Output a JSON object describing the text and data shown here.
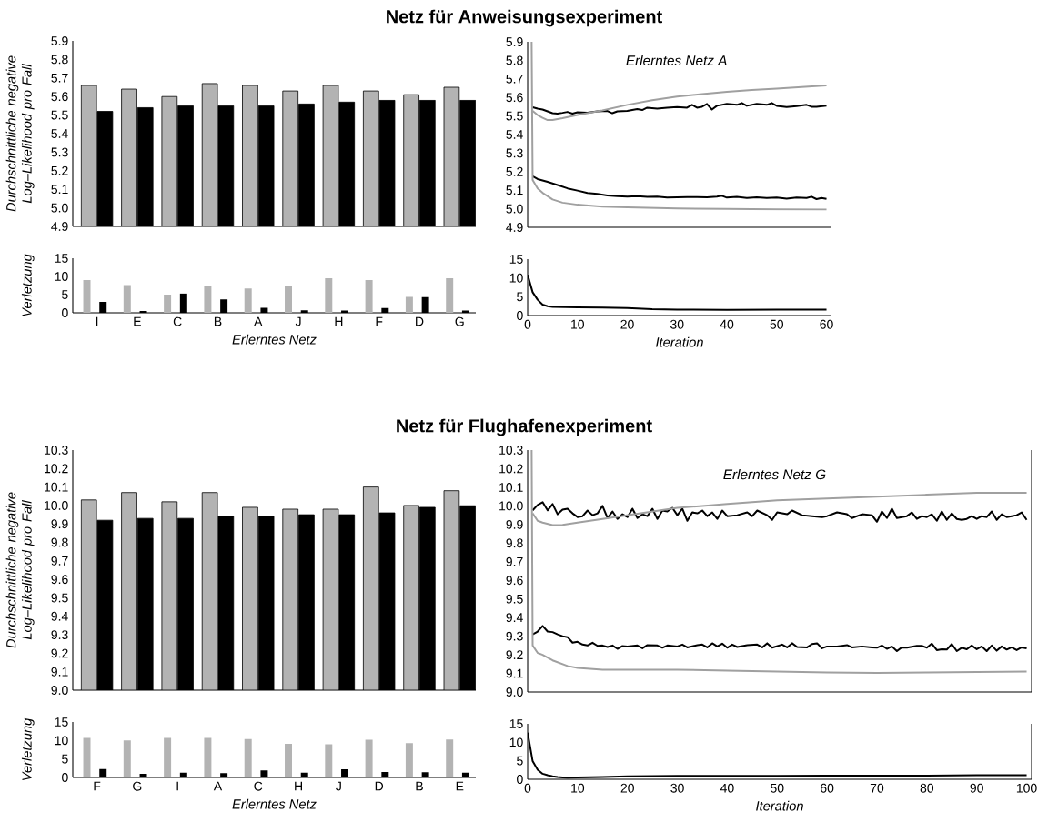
{
  "chart_data": [
    {
      "type": "bar",
      "title": "Netz für Anweisungsexperiment",
      "ylabel": "Durchschnittliche negative Log–Likelihood pro Fall",
      "categories": [
        null,
        null,
        null,
        null,
        null,
        null,
        null,
        null,
        null,
        null
      ],
      "series": [
        {
          "color": "#b3b3b3",
          "values": [
            5.66,
            5.64,
            5.6,
            5.67,
            5.66,
            5.63,
            5.66,
            5.63,
            5.61,
            5.65
          ]
        },
        {
          "color": "#000000",
          "values": [
            5.52,
            5.54,
            5.55,
            5.55,
            5.55,
            5.56,
            5.57,
            5.58,
            5.58,
            5.58
          ]
        }
      ],
      "ylim": [
        4.9,
        5.9
      ],
      "yticks": [
        4.9,
        {
          "value": 5.0,
          "label": "5.0"
        },
        5.1,
        5.2,
        5.3,
        5.4,
        5.5,
        5.6,
        5.7,
        5.8,
        5.9
      ]
    },
    {
      "type": "bar",
      "xlabel": "Erlerntes Netz",
      "ylabel": "Verletzung",
      "categories": [
        "I",
        "E",
        "C",
        "B",
        "A",
        "J",
        "H",
        "F",
        "D",
        "G"
      ],
      "series": [
        {
          "color": "#b3b3b3",
          "values": [
            9.0,
            7.6,
            5.0,
            7.3,
            6.7,
            7.5,
            9.5,
            9.0,
            4.4,
            9.5
          ]
        },
        {
          "color": "#000000",
          "values": [
            3.0,
            0.5,
            5.3,
            3.7,
            1.4,
            0.7,
            0.6,
            1.3,
            4.3,
            0.6
          ]
        }
      ],
      "ylim": [
        0,
        15
      ],
      "yticks": [
        0,
        5,
        10,
        15
      ]
    },
    {
      "type": "line",
      "annotations": [
        "Erlerntes Netz A"
      ],
      "xlim": [
        0,
        61
      ],
      "ylim": [
        4.9,
        5.9
      ],
      "yticks": [
        4.9,
        {
          "value": 5.0,
          "label": "5.0"
        },
        5.1,
        5.2,
        5.3,
        5.4,
        5.5,
        5.6,
        5.7,
        5.8,
        5.9
      ],
      "tick_labels": "y",
      "series": [
        {
          "color": "#000000",
          "x": [
            1,
            2,
            3,
            4,
            5,
            6,
            7,
            8,
            9,
            10,
            12,
            14,
            16,
            17,
            18,
            20,
            22,
            23,
            24,
            26,
            28,
            30,
            32,
            33,
            34,
            35,
            36,
            37,
            38,
            40,
            42,
            43,
            44,
            46,
            48,
            49,
            50,
            52,
            54,
            56,
            57,
            58,
            60
          ],
          "values": [
            5.547,
            5.54,
            5.535,
            5.525,
            5.515,
            5.513,
            5.517,
            5.522,
            5.513,
            5.52,
            5.518,
            5.525,
            5.527,
            5.515,
            5.525,
            5.527,
            5.537,
            5.532,
            5.545,
            5.54,
            5.545,
            5.548,
            5.545,
            5.56,
            5.545,
            5.55,
            5.565,
            5.535,
            5.555,
            5.565,
            5.56,
            5.57,
            5.555,
            5.565,
            5.56,
            5.57,
            5.555,
            5.548,
            5.553,
            5.56,
            5.55,
            5.55,
            5.556
          ]
        },
        {
          "color": "#a0a0a0",
          "x": [
            1,
            2,
            3,
            4,
            5,
            7,
            10,
            15,
            20,
            25,
            30,
            35,
            40,
            45,
            50,
            55,
            60
          ],
          "values": [
            5.527,
            5.505,
            5.49,
            5.478,
            5.478,
            5.488,
            5.505,
            5.53,
            5.56,
            5.585,
            5.605,
            5.618,
            5.63,
            5.64,
            5.648,
            5.656,
            5.665
          ]
        },
        {
          "color": "#000000",
          "x": [
            1,
            2,
            4,
            6,
            8,
            10,
            12,
            14,
            16,
            18,
            20,
            22,
            24,
            26,
            28,
            30,
            32,
            34,
            36,
            38,
            39,
            40,
            42,
            44,
            46,
            48,
            50,
            52,
            54,
            56,
            57,
            58,
            59,
            60
          ],
          "values": [
            5.175,
            5.16,
            5.145,
            5.128,
            5.11,
            5.098,
            5.085,
            5.08,
            5.072,
            5.068,
            5.066,
            5.068,
            5.064,
            5.066,
            5.06,
            5.062,
            5.063,
            5.063,
            5.062,
            5.066,
            5.07,
            5.06,
            5.064,
            5.058,
            5.062,
            5.058,
            5.06,
            5.055,
            5.06,
            5.058,
            5.065,
            5.052,
            5.058,
            5.053
          ]
        },
        {
          "color": "#a0a0a0",
          "x": [
            0.8,
            1,
            2,
            3,
            5,
            7,
            10,
            15,
            20,
            30,
            40,
            50,
            60
          ],
          "values": [
            5.9,
            5.155,
            5.11,
            5.086,
            5.05,
            5.033,
            5.022,
            5.012,
            5.008,
            5.002,
            4.999,
            4.997,
            4.996
          ]
        }
      ]
    },
    {
      "type": "line",
      "xlabel": "Iteration",
      "xlim": [
        0,
        61
      ],
      "xticks": [
        0,
        10,
        20,
        30,
        40,
        50,
        60
      ],
      "ylim": [
        0,
        15
      ],
      "yticks": [
        0,
        5,
        10,
        15
      ],
      "series": [
        {
          "color": "#000000",
          "x": [
            0,
            1,
            2,
            3,
            4,
            5,
            10,
            15,
            20,
            25,
            30,
            40,
            50,
            60
          ],
          "values": [
            10.8,
            6.2,
            4.2,
            2.9,
            2.5,
            2.3,
            2.2,
            2.1,
            2.0,
            1.7,
            1.6,
            1.5,
            1.6,
            1.6
          ]
        }
      ]
    },
    {
      "type": "bar",
      "title": "Netz für Flughafenexperiment",
      "ylabel": "Durchschnittliche negative Log–Likelihood pro Fall",
      "categories": [
        null,
        null,
        null,
        null,
        null,
        null,
        null,
        null,
        null,
        null
      ],
      "series": [
        {
          "color": "#b3b3b3",
          "values": [
            10.03,
            10.07,
            10.02,
            10.07,
            9.99,
            9.98,
            9.98,
            10.1,
            10.0,
            10.08
          ]
        },
        {
          "color": "#000000",
          "values": [
            9.92,
            9.93,
            9.93,
            9.94,
            9.94,
            9.95,
            9.95,
            9.96,
            9.99,
            10.0
          ]
        }
      ],
      "ylim": [
        9.0,
        10.3
      ],
      "yticks": [
        {
          "value": 9.0,
          "label": "9.0"
        },
        9.1,
        9.2,
        9.3,
        9.4,
        9.5,
        9.6,
        9.7,
        9.8,
        9.9,
        {
          "value": 10.0,
          "label": "10.0"
        },
        10.1,
        10.2,
        10.3
      ]
    },
    {
      "type": "bar",
      "xlabel": "Erlerntes Netz",
      "ylabel": "Verletzung",
      "categories": [
        "F",
        "G",
        "I",
        "A",
        "C",
        "H",
        "J",
        "D",
        "B",
        "E"
      ],
      "series": [
        {
          "color": "#b3b3b3",
          "values": [
            10.7,
            10.0,
            10.7,
            10.7,
            10.4,
            9.1,
            9.0,
            10.2,
            9.3,
            10.3
          ]
        },
        {
          "color": "#000000",
          "values": [
            2.3,
            1.0,
            1.3,
            1.2,
            1.9,
            1.3,
            2.2,
            1.5,
            1.4,
            1.3
          ]
        }
      ],
      "ylim": [
        0,
        15
      ],
      "yticks": [
        0,
        5,
        10,
        15
      ]
    },
    {
      "type": "line",
      "annotations": [
        "Erlerntes Netz G"
      ],
      "xlim": [
        0,
        101
      ],
      "ylim": [
        9.0,
        10.3
      ],
      "yticks": [
        {
          "value": 9.0,
          "label": "9.0"
        },
        9.1,
        9.2,
        9.3,
        9.4,
        9.5,
        9.6,
        9.7,
        9.8,
        9.9,
        {
          "value": 10.0,
          "label": "10.0"
        },
        10.1,
        10.2,
        10.3
      ],
      "tick_labels": "y",
      "series": [
        {
          "color": "#000000",
          "x": [
            1,
            2,
            3,
            4,
            5,
            6,
            7,
            8,
            9,
            10,
            11,
            12,
            13,
            14,
            15,
            16,
            17,
            18,
            19,
            20,
            21,
            22,
            23,
            24,
            25,
            26,
            27,
            28,
            29,
            30,
            31,
            32,
            33,
            34,
            35,
            36,
            37,
            38,
            39,
            40,
            42,
            44,
            45,
            46,
            48,
            49,
            50,
            52,
            53,
            55,
            57,
            59,
            60,
            62,
            64,
            65,
            67,
            69,
            70,
            71,
            72,
            73,
            74,
            76,
            77,
            78,
            79,
            80,
            81,
            82,
            83,
            84,
            85,
            86,
            87,
            88,
            89,
            90,
            91,
            92,
            93,
            94,
            95,
            96,
            97,
            98,
            99,
            100
          ],
          "values": [
            9.976,
            10.005,
            10.02,
            9.976,
            10.01,
            9.955,
            9.98,
            9.985,
            9.96,
            9.94,
            9.945,
            9.975,
            9.95,
            9.96,
            10.0,
            9.935,
            9.97,
            9.93,
            9.955,
            9.94,
            9.985,
            9.935,
            9.955,
            9.945,
            9.985,
            9.93,
            9.975,
            9.97,
            9.99,
            9.95,
            9.985,
            9.92,
            9.965,
            9.96,
            9.975,
            9.945,
            9.965,
            9.93,
            9.975,
            9.945,
            9.95,
            9.965,
            9.945,
            9.975,
            9.95,
            9.925,
            9.965,
            9.955,
            9.975,
            9.95,
            9.945,
            9.94,
            9.945,
            9.965,
            9.955,
            9.935,
            9.955,
            9.95,
            9.915,
            9.97,
            9.935,
            9.985,
            9.935,
            9.945,
            9.965,
            9.93,
            9.945,
            9.94,
            9.955,
            9.92,
            9.97,
            9.925,
            9.96,
            9.93,
            9.925,
            9.93,
            9.945,
            9.93,
            9.945,
            9.94,
            9.97,
            9.925,
            9.955,
            9.94,
            9.945,
            9.95,
            9.965,
            9.925
          ]
        },
        {
          "color": "#a0a0a0",
          "x": [
            1,
            2,
            3,
            5,
            7,
            10,
            15,
            20,
            25,
            30,
            35,
            40,
            45,
            50,
            55,
            60,
            65,
            70,
            75,
            80,
            85,
            90,
            95,
            100
          ],
          "values": [
            9.96,
            9.92,
            9.91,
            9.897,
            9.898,
            9.91,
            9.93,
            9.95,
            9.97,
            9.99,
            10.0,
            10.01,
            10.02,
            10.03,
            10.035,
            10.04,
            10.045,
            10.05,
            10.055,
            10.06,
            10.065,
            10.07,
            10.07,
            10.07
          ]
        },
        {
          "color": "#000000",
          "x": [
            1,
            2,
            3,
            4,
            5,
            6,
            7,
            8,
            9,
            10,
            11,
            12,
            13,
            14,
            15,
            16,
            17,
            18,
            19,
            20,
            22,
            23,
            24,
            26,
            27,
            28,
            30,
            31,
            32,
            34,
            35,
            36,
            37,
            38,
            39,
            40,
            41,
            42,
            44,
            46,
            47,
            48,
            49,
            51,
            52,
            53,
            54,
            56,
            57,
            58,
            59,
            60,
            62,
            64,
            65,
            67,
            69,
            70,
            71,
            72,
            73,
            74,
            75,
            76,
            78,
            79,
            80,
            81,
            82,
            83,
            84,
            85,
            86,
            87,
            88,
            89,
            90,
            91,
            92,
            93,
            94,
            95,
            96,
            97,
            98,
            99,
            100
          ],
          "values": [
            9.31,
            9.325,
            9.355,
            9.325,
            9.322,
            9.31,
            9.3,
            9.295,
            9.265,
            9.27,
            9.255,
            9.25,
            9.265,
            9.248,
            9.25,
            9.242,
            9.25,
            9.232,
            9.247,
            9.245,
            9.25,
            9.235,
            9.252,
            9.25,
            9.238,
            9.25,
            9.245,
            9.255,
            9.24,
            9.252,
            9.255,
            9.24,
            9.262,
            9.245,
            9.26,
            9.238,
            9.255,
            9.242,
            9.252,
            9.255,
            9.24,
            9.262,
            9.238,
            9.255,
            9.24,
            9.262,
            9.242,
            9.24,
            9.258,
            9.262,
            9.235,
            9.245,
            9.245,
            9.252,
            9.24,
            9.245,
            9.24,
            9.238,
            9.25,
            9.232,
            9.245,
            9.22,
            9.24,
            9.238,
            9.248,
            9.248,
            9.238,
            9.26,
            9.225,
            9.23,
            9.228,
            9.258,
            9.22,
            9.238,
            9.23,
            9.25,
            9.23,
            9.245,
            9.22,
            9.25,
            9.222,
            9.245,
            9.228,
            9.24,
            9.225,
            9.24,
            9.235
          ]
        },
        {
          "color": "#a0a0a0",
          "x": [
            0.8,
            1,
            2,
            3,
            5,
            8,
            10,
            15,
            20,
            30,
            40,
            50,
            60,
            70,
            80,
            90,
            100
          ],
          "values": [
            10.3,
            9.25,
            9.21,
            9.2,
            9.17,
            9.14,
            9.13,
            9.12,
            9.12,
            9.12,
            9.115,
            9.11,
            9.105,
            9.103,
            9.105,
            9.108,
            9.11
          ]
        }
      ]
    },
    {
      "type": "line",
      "xlabel": "Iteration",
      "xlim": [
        0,
        101
      ],
      "xticks": [
        0,
        10,
        20,
        30,
        40,
        50,
        60,
        70,
        80,
        90,
        100
      ],
      "ylim": [
        0,
        15
      ],
      "yticks": [
        0,
        5,
        10,
        15
      ],
      "series": [
        {
          "color": "#000000",
          "x": [
            0,
            1,
            2,
            3,
            4,
            5,
            6,
            8,
            10,
            15,
            20,
            30,
            40,
            50,
            60,
            70,
            80,
            90,
            100
          ],
          "values": [
            12.6,
            4.9,
            2.6,
            1.5,
            1.1,
            0.8,
            0.6,
            0.4,
            0.5,
            0.6,
            0.8,
            0.9,
            0.9,
            0.9,
            1.0,
            1.0,
            1.0,
            1.1,
            1.1
          ]
        }
      ]
    }
  ]
}
